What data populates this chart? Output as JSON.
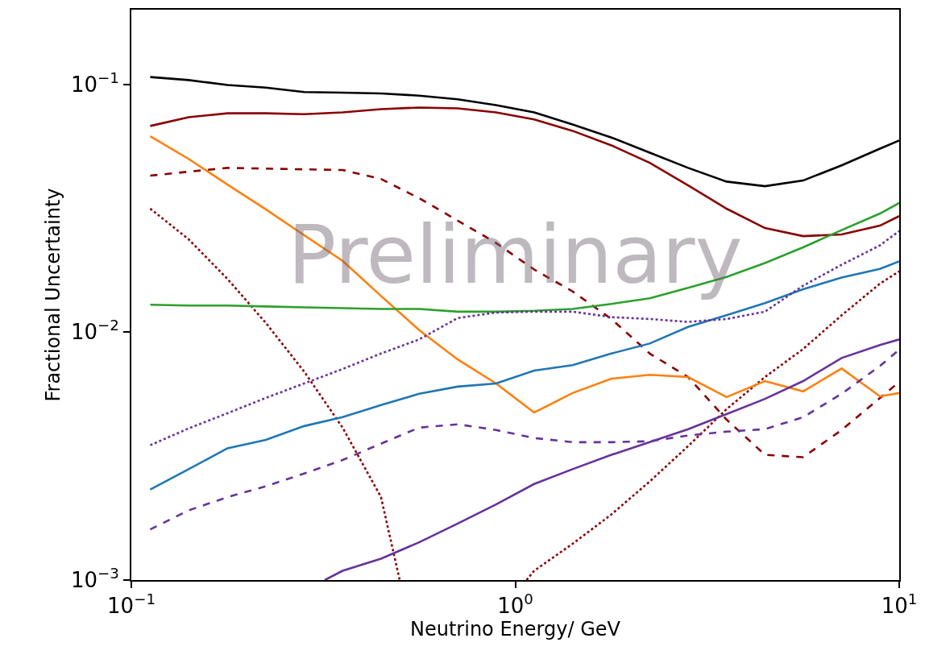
{
  "chart_data": {
    "type": "line",
    "xlabel": "Neutrino Energy/ GeV",
    "ylabel": "Fractional Uncertainty",
    "log": "xy",
    "marker": "none",
    "x": [
      0.112,
      0.141,
      0.178,
      0.224,
      0.282,
      0.355,
      0.447,
      0.562,
      0.708,
      0.891,
      1.12,
      1.41,
      1.78,
      2.24,
      2.82,
      3.55,
      4.47,
      5.62,
      7.08,
      8.91,
      10
    ],
    "xlim": [
      0.1,
      10
    ],
    "ylim": [
      0.001,
      0.2
    ],
    "xticks": [
      {
        "value": 0.1,
        "label": "10$^{−1}$"
      },
      {
        "value": 1,
        "label": "10$^{0}$"
      },
      {
        "value": 10,
        "label": "10$^{1}$"
      }
    ],
    "yticks": [
      {
        "value": 0.001,
        "label": "10$^{−3}$"
      },
      {
        "value": 0.01,
        "label": "10$^{−2}$"
      },
      {
        "value": 0.1,
        "label": "10$^{−1}$"
      }
    ],
    "annotations": [
      "Preliminary"
    ],
    "series": [
      {
        "color": "#000000",
        "line_style": "solid",
        "values": [
          0.107,
          0.104,
          0.0993,
          0.097,
          0.093,
          0.0925,
          0.0918,
          0.09,
          0.087,
          0.0824,
          0.077,
          0.0689,
          0.061,
          0.053,
          0.046,
          0.0405,
          0.0388,
          0.0409,
          0.0471,
          0.055,
          0.0593
        ]
      },
      {
        "color": "#8b0000",
        "line_style": "solid",
        "values": [
          0.0679,
          0.0736,
          0.0764,
          0.0764,
          0.0757,
          0.077,
          0.0794,
          0.0806,
          0.08,
          0.077,
          0.0721,
          0.0649,
          0.0567,
          0.0482,
          0.0391,
          0.0315,
          0.0263,
          0.0244,
          0.0248,
          0.0269,
          0.0294
        ]
      },
      {
        "color": "#8b0000",
        "line_style": "dashed",
        "values": [
          0.0428,
          0.0444,
          0.046,
          0.0457,
          0.0454,
          0.0451,
          0.0415,
          0.0347,
          0.0282,
          0.0229,
          0.0179,
          0.0146,
          0.0113,
          0.0082,
          0.00659,
          0.00444,
          0.0032,
          0.00313,
          0.00403,
          0.00543,
          0.0063
        ]
      },
      {
        "color": "#8b0000",
        "line_style": "dotted",
        "x": [
          0.112,
          0.141,
          0.178,
          0.224,
          0.282,
          0.355,
          0.447,
          0.5
        ],
        "values": [
          0.0315,
          0.0237,
          0.0164,
          0.0109,
          0.00693,
          0.00412,
          0.00216,
          0.001
        ]
      },
      {
        "color": "#8b0000",
        "line_style": "dotted",
        "x": [
          1.07,
          1.12,
          1.41,
          1.78,
          2.24,
          2.82,
          3.55,
          4.47,
          5.62,
          7.08,
          8.91,
          10
        ],
        "values": [
          0.001,
          0.00109,
          0.0014,
          0.00184,
          0.0025,
          0.00347,
          0.00489,
          0.00659,
          0.00855,
          0.0117,
          0.0157,
          0.0176
        ]
      },
      {
        "color": "#ff7f0e",
        "line_style": "solid",
        "values": [
          0.0617,
          0.05,
          0.0394,
          0.0313,
          0.0246,
          0.0194,
          0.014,
          0.0102,
          0.00776,
          0.00621,
          0.00474,
          0.00568,
          0.00649,
          0.00673,
          0.00659,
          0.00547,
          0.00635,
          0.00577,
          0.00714,
          0.00551,
          0.00568
        ]
      },
      {
        "color": "#2ca02c",
        "line_style": "solid",
        "values": [
          0.0129,
          0.0128,
          0.0128,
          0.0127,
          0.0126,
          0.0125,
          0.0124,
          0.0124,
          0.0121,
          0.0121,
          0.0122,
          0.0124,
          0.013,
          0.0137,
          0.0151,
          0.0167,
          0.019,
          0.022,
          0.0258,
          0.0301,
          0.0332
        ]
      },
      {
        "color": "#1f77b4",
        "line_style": "solid",
        "values": [
          0.00232,
          0.0028,
          0.0034,
          0.00368,
          0.00418,
          0.00454,
          0.00508,
          0.00564,
          0.00603,
          0.00621,
          0.007,
          0.00736,
          0.0082,
          0.009,
          0.0105,
          0.0117,
          0.0131,
          0.0149,
          0.0166,
          0.018,
          0.0193
        ]
      },
      {
        "color": "#663399",
        "line_style": "solid",
        "x": [
          0.319,
          0.355,
          0.447,
          0.562,
          0.708,
          0.891,
          1.12,
          1.41,
          1.78,
          2.24,
          2.82,
          3.55,
          4.47,
          5.62,
          7.08,
          8.91,
          10
        ],
        "values": [
          0.001,
          0.00109,
          0.00122,
          0.00142,
          0.00169,
          0.00202,
          0.00244,
          0.0028,
          0.0032,
          0.0036,
          0.00406,
          0.00467,
          0.00538,
          0.00635,
          0.00787,
          0.00888,
          0.00935
        ]
      },
      {
        "color": "#663399",
        "line_style": "dashed",
        "values": [
          0.0016,
          0.00191,
          0.00216,
          0.00239,
          0.00269,
          0.00305,
          0.00355,
          0.00412,
          0.00425,
          0.00403,
          0.00374,
          0.0036,
          0.0036,
          0.00363,
          0.00383,
          0.00397,
          0.00406,
          0.00454,
          0.00564,
          0.00731,
          0.00849
        ]
      },
      {
        "color": "#663399",
        "line_style": "dotted",
        "values": [
          0.0035,
          0.00409,
          0.00471,
          0.00543,
          0.00621,
          0.0071,
          0.0082,
          0.00935,
          0.0114,
          0.012,
          0.0121,
          0.0121,
          0.0115,
          0.0113,
          0.011,
          0.0113,
          0.0121,
          0.0154,
          0.0187,
          0.0224,
          0.0256
        ]
      }
    ]
  }
}
